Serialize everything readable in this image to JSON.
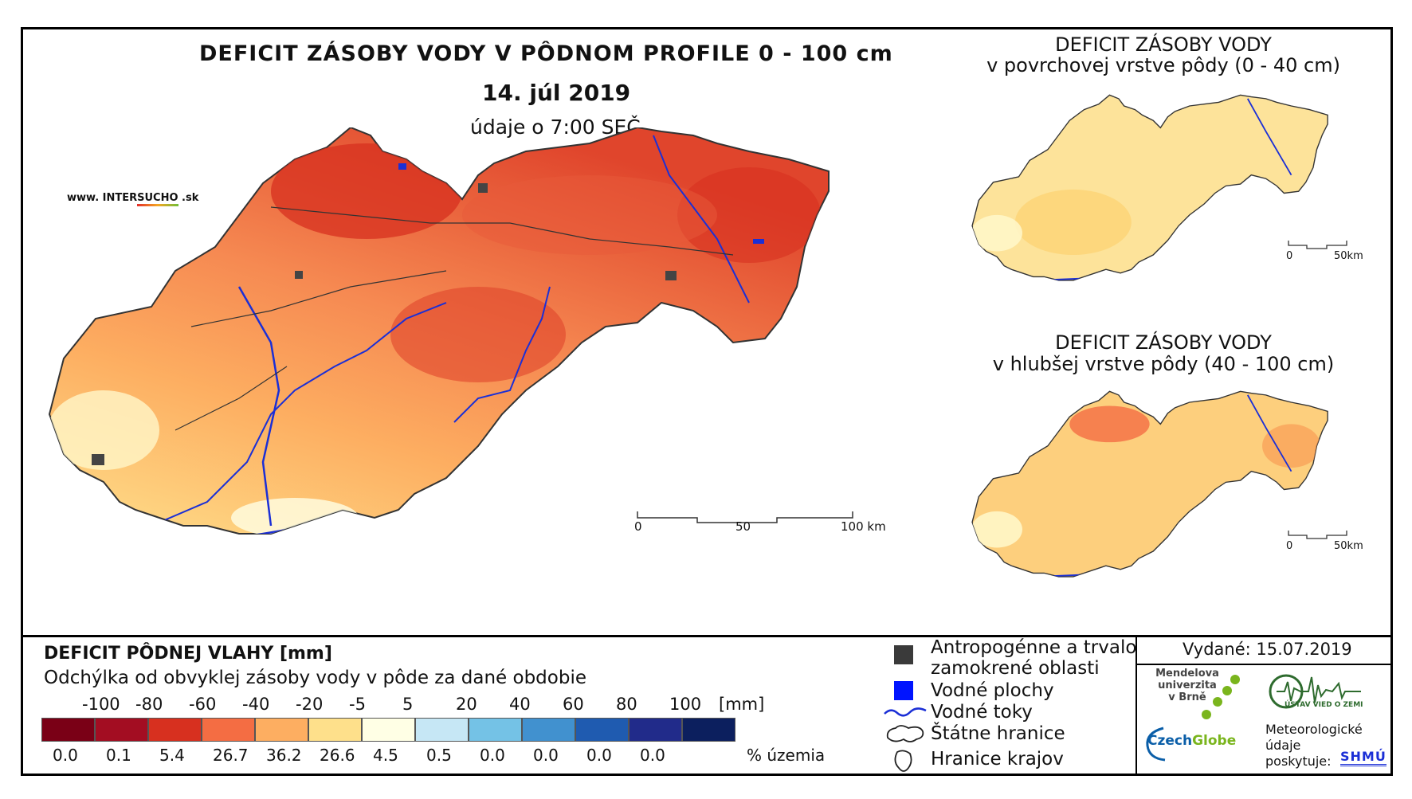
{
  "header": {
    "title": "DEFICIT ZÁSOBY VODY V PÔDNOM PROFILE 0 - 100 cm",
    "date": "14. júl 2019",
    "time": "údaje o 7:00 SEČ",
    "website_prefix": "www. INTER",
    "website_brand": "SUCHO",
    "website_suffix": " .sk"
  },
  "main_map": {
    "scale_labels": [
      "0",
      "50",
      "100 km"
    ]
  },
  "mini_maps": [
    {
      "title_line1": "DEFICIT ZÁSOBY VODY",
      "title_line2": "v povrchovej vrstve pôdy (0 - 40 cm)",
      "scale_labels": [
        "0",
        "50km"
      ]
    },
    {
      "title_line1": "DEFICIT ZÁSOBY VODY",
      "title_line2": "v hlubšej vrstve pôdy (40 - 100 cm)",
      "scale_labels": [
        "0",
        "50km"
      ]
    }
  ],
  "legend": {
    "title": "DEFICIT PÔDNEJ VLAHY [mm]",
    "subtitle": "Odchýlka od obvyklej zásoby vody v pôde za dané obdobie",
    "ticks": [
      "-100",
      "-80",
      "-60",
      "-40",
      "-20",
      "-5",
      "5",
      "20",
      "40",
      "60",
      "80",
      "100"
    ],
    "unit": "[mm]",
    "colors": [
      "#7a0016",
      "#a30d22",
      "#d7301f",
      "#f46d43",
      "#fdae61",
      "#fee08b",
      "#ffffe5",
      "#c6e7f5",
      "#74c2e6",
      "#4191cf",
      "#1f5bb0",
      "#212b8a",
      "#0c1f5e"
    ],
    "percents": [
      "0.0",
      "0.1",
      "5.4",
      "26.7",
      "36.2",
      "26.6",
      "4.5",
      "0.5",
      "0.0",
      "0.0",
      "0.0",
      "0.0"
    ],
    "percent_label": "% územia"
  },
  "symbols": {
    "urban_line1": "Antropogénne a trvalo",
    "urban_line2": "zamokrené oblasti",
    "water_bodies": "Vodné plochy",
    "rivers": "Vodné toky",
    "state_border": "Štátne hranice",
    "region_border": "Hranice krajov"
  },
  "footer": {
    "issued": "Vydané: 15.07.2019",
    "mendel_line1": "Mendelova",
    "mendel_line2": "univerzita",
    "mendel_line3": "v Brně",
    "czechglobe_a": "Czech",
    "czechglobe_b": "Globe",
    "uvz": "ÚSTAV VIED O ZEMI",
    "meteo_line1": "Meteorologické",
    "meteo_line2": "údaje",
    "meteo_line3": "poskytuje:",
    "shmu": "SHMÚ"
  }
}
